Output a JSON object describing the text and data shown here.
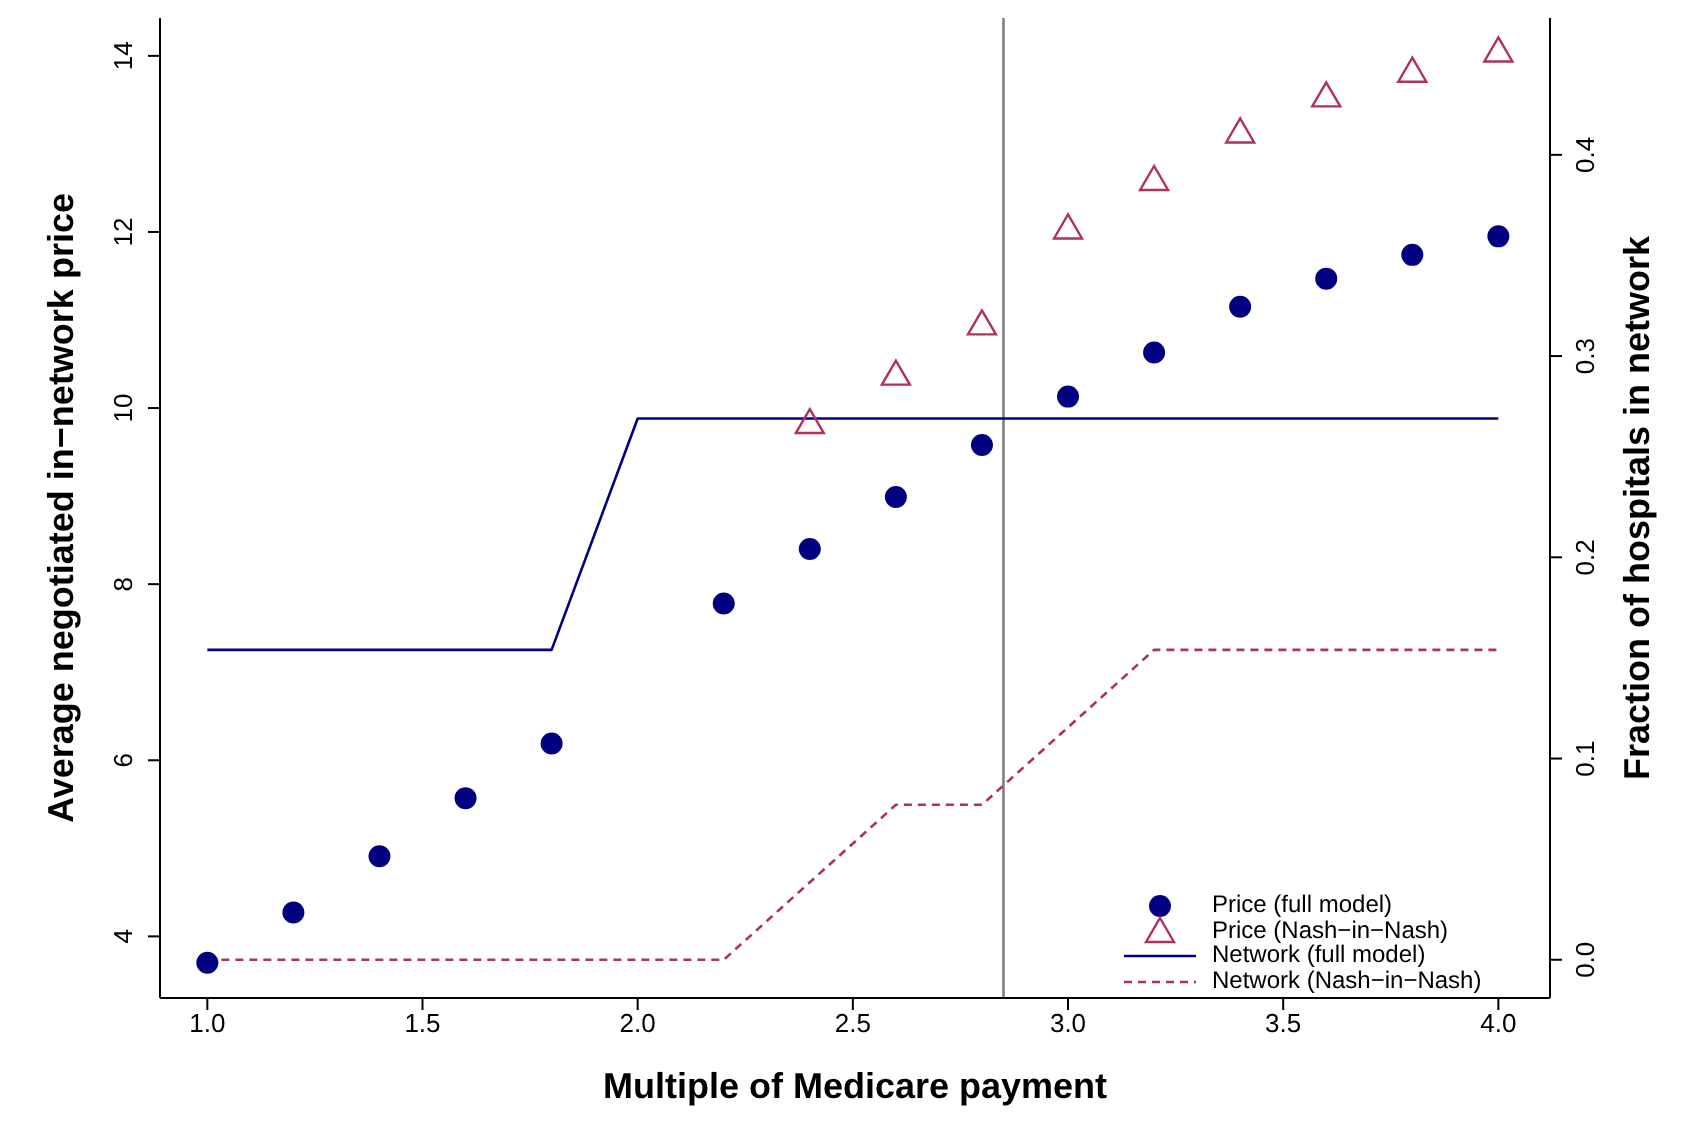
{
  "chart_data": {
    "type": "scatter",
    "xlabel": "Multiple of Medicare payment",
    "ylabel": "Average negotiated in−network price",
    "y2label": "Fraction of hospitals in network",
    "xlim": [
      0.89,
      4.12
    ],
    "xticks": [
      {
        "value": 1,
        "label": "1.0"
      },
      1.5,
      {
        "value": 2,
        "label": "2.0"
      },
      2.5,
      {
        "value": 3,
        "label": "3.0"
      },
      3.5,
      {
        "value": 4,
        "label": "4.0"
      }
    ],
    "ylim": [
      3.3,
      14.43
    ],
    "yticks": [
      4,
      6,
      8,
      10,
      12,
      14
    ],
    "y2lim": [
      -0.019,
      0.468
    ],
    "y2ticks": [
      {
        "value": 0,
        "label": "0.0"
      },
      0.1,
      0.2,
      0.3,
      0.4
    ],
    "legend": "bottom right",
    "ref_lines": [
      {
        "axis": "x",
        "value": 2.85,
        "color": "#808080",
        "line_style": "solid"
      }
    ],
    "series": [
      {
        "name": "Price (full model)",
        "marker": "circle",
        "color": "#000080",
        "x": [
          1.0,
          1.2,
          1.4,
          1.6,
          1.8,
          2.2,
          2.4,
          2.6,
          2.8,
          3.0,
          3.2,
          3.4,
          3.6,
          3.8,
          4.0
        ],
        "values": [
          3.7,
          4.27,
          4.91,
          5.57,
          6.19,
          7.78,
          8.4,
          8.99,
          9.58,
          10.13,
          10.63,
          11.15,
          11.47,
          11.74,
          11.95
        ]
      },
      {
        "name": "Price (Nash−in−Nash)",
        "marker": "triangle",
        "color": "#b03060",
        "x": [
          2.4,
          2.6,
          2.8,
          3.0,
          3.2,
          3.4,
          3.6,
          3.8,
          4.0
        ],
        "values": [
          9.83,
          10.38,
          10.95,
          12.04,
          12.59,
          13.13,
          13.54,
          13.82,
          14.05
        ]
      },
      {
        "name": "Network (full model)",
        "type": "line",
        "axis": "y2",
        "line_style": "solid",
        "marker": "none",
        "color": "#000080",
        "x": [
          1.0,
          1.8,
          2.0,
          4.0
        ],
        "values": [
          0.154,
          0.154,
          0.269,
          0.269
        ]
      },
      {
        "name": "Network (Nash−in−Nash)",
        "type": "line",
        "axis": "y2",
        "line_style": "dashed",
        "marker": "none",
        "color": "#b03060",
        "x": [
          1.0,
          2.2,
          2.6,
          2.8,
          3.2,
          4.0
        ],
        "values": [
          0,
          0,
          0.077,
          0.077,
          0.154,
          0.154
        ]
      }
    ]
  }
}
